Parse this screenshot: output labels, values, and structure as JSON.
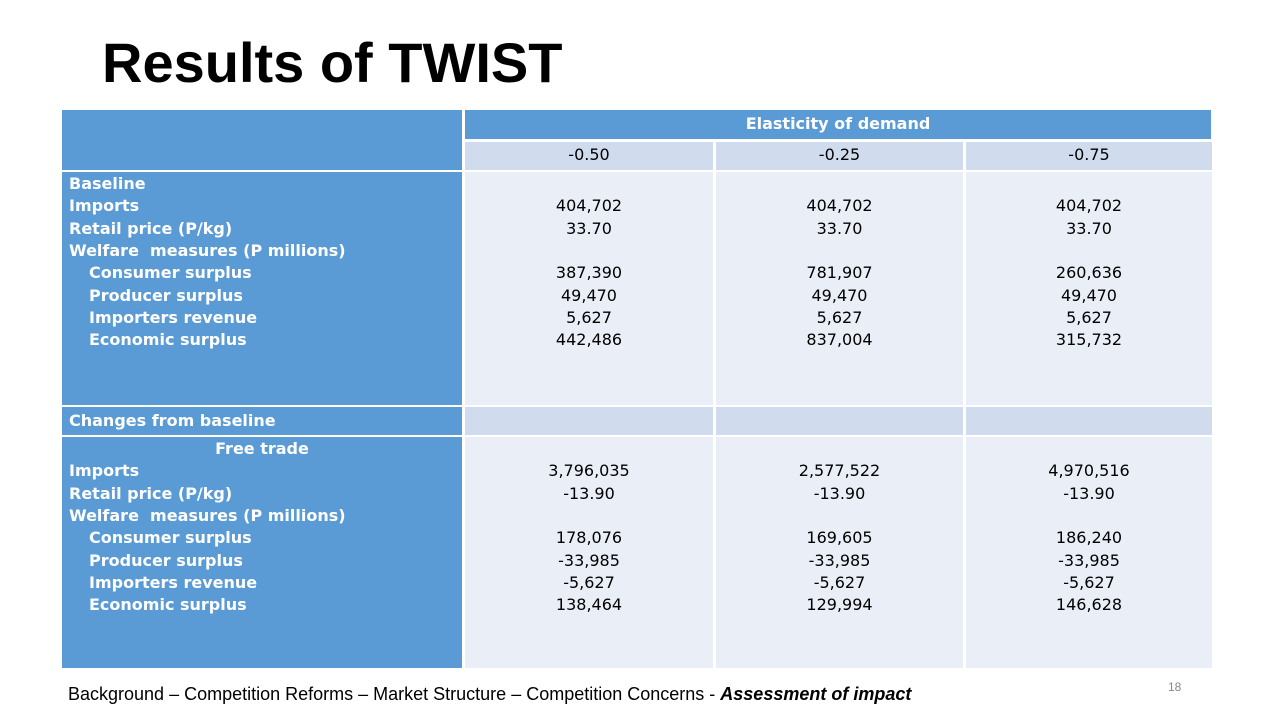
{
  "title": "Results of TWIST",
  "table": {
    "header": "Elasticity of demand",
    "columns": [
      "-0.50",
      "-0.25",
      "-0.75"
    ],
    "sections": [
      {
        "rows": [
          {
            "label": "Baseline"
          },
          {
            "label": "Imports",
            "values": [
              "404,702",
              "404,702",
              "404,702"
            ]
          },
          {
            "label": "Retail price (P/kg)",
            "values": [
              "33.70",
              "33.70",
              "33.70"
            ]
          },
          {
            "label": "Welfare  measures (P millions)"
          },
          {
            "label": "Consumer surplus",
            "values": [
              "387,390",
              "781,907",
              "260,636"
            ]
          },
          {
            "label": "Producer surplus",
            "values": [
              "49,470",
              "49,470",
              "49,470"
            ]
          },
          {
            "label": "Importers revenue",
            "values": [
              "5,627",
              "5,627",
              "5,627"
            ]
          },
          {
            "label": "Economic surplus",
            "values": [
              "442,486",
              "837,004",
              "315,732"
            ]
          }
        ]
      },
      {
        "divider": "Changes from baseline"
      },
      {
        "heading": "Free trade",
        "rows": [
          {
            "label": "Imports",
            "values": [
              "3,796,035",
              "2,577,522",
              "4,970,516"
            ]
          },
          {
            "label": "Retail price (P/kg)",
            "values": [
              "-13.90",
              "-13.90",
              "-13.90"
            ]
          },
          {
            "label": "Welfare  measures (P millions)"
          },
          {
            "label": "Consumer surplus",
            "values": [
              "178,076",
              "169,605",
              "186,240"
            ]
          },
          {
            "label": "Producer surplus",
            "values": [
              "-33,985",
              "-33,985",
              "-33,985"
            ]
          },
          {
            "label": "Importers revenue",
            "values": [
              "-5,627",
              "-5,627",
              "-5,627"
            ]
          },
          {
            "label": "Economic surplus",
            "values": [
              "138,464",
              "129,994",
              "146,628"
            ]
          }
        ]
      }
    ]
  },
  "footer": {
    "text": "Background – Competition Reforms – Market Structure – Competition Concerns - ",
    "emphasis": "Assessment of impact"
  },
  "page_number": "18"
}
